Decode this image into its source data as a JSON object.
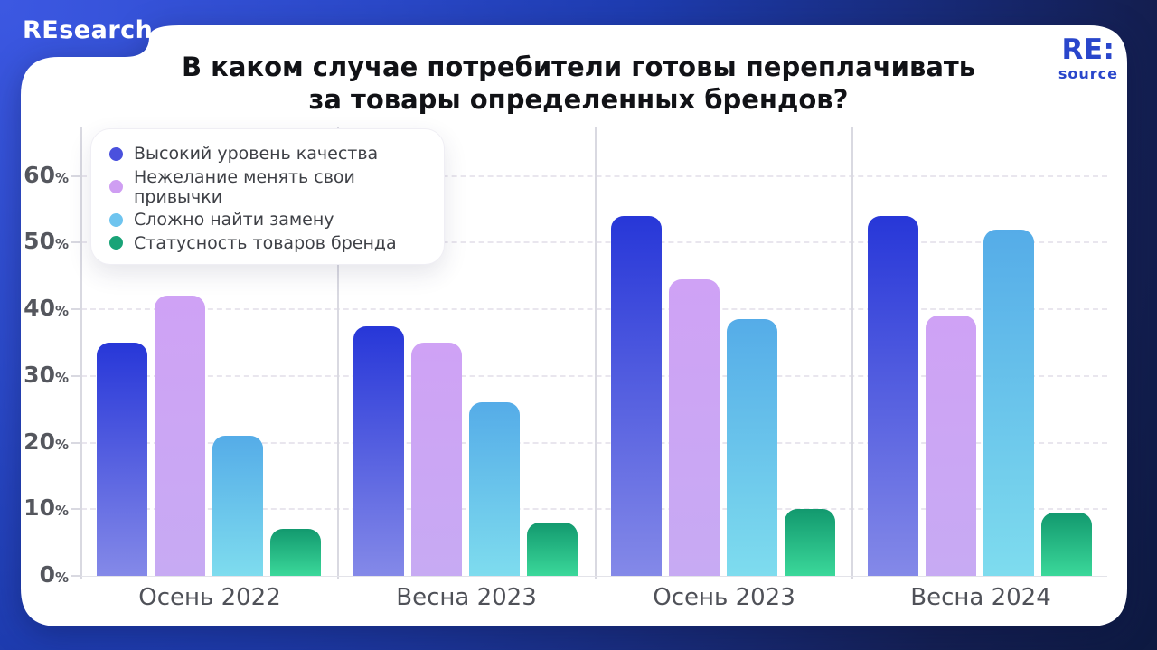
{
  "brand": "REsearch",
  "logo": {
    "top": "RE:",
    "bottom": "source"
  },
  "title": {
    "line1": "В каком случае потребители готовы переплачивать",
    "line2": "за товары определенных брендов?"
  },
  "colors": {
    "logo_blue": "#2946cb",
    "background_top_left": "#3c58e2",
    "background_bottom_right": "#0d1940",
    "card_white": "#ffffff"
  },
  "chart_data": {
    "type": "bar",
    "title": "В каком случае потребители готовы переплачивать за товары определенных брендов?",
    "categories": [
      "Осень 2022",
      "Весна 2023",
      "Осень 2023",
      "Весна 2024"
    ],
    "series": [
      {
        "name": "Высокий уровень качества",
        "values": [
          35,
          37.5,
          54,
          54
        ],
        "dot_color": "#4a51dd",
        "bar_top": "#2737d8",
        "bar_bottom": "#8489e8"
      },
      {
        "name": "Нежелание менять свои привычки",
        "values": [
          42,
          35,
          44.5,
          39
        ],
        "dot_color": "#cf9ef2",
        "bar_top": "#cfa2f5",
        "bar_bottom": "#c7aaf3"
      },
      {
        "name": "Сложно найти замену",
        "values": [
          21,
          26,
          38.5,
          52
        ],
        "dot_color": "#6ec4ef",
        "bar_top": "#55ace8",
        "bar_bottom": "#7edcee"
      },
      {
        "name": "Статусность товаров бренда",
        "values": [
          7,
          8,
          10,
          9.5
        ],
        "dot_color": "#19a377",
        "bar_top": "#12996e",
        "bar_bottom": "#3bd89a"
      }
    ],
    "y_ticks": [
      "0%",
      "10%",
      "20%",
      "30%",
      "40%",
      "50%",
      "60%"
    ],
    "ylim": [
      0,
      67
    ],
    "grid": "horizontal-dashed",
    "legend_position": "top-left"
  }
}
